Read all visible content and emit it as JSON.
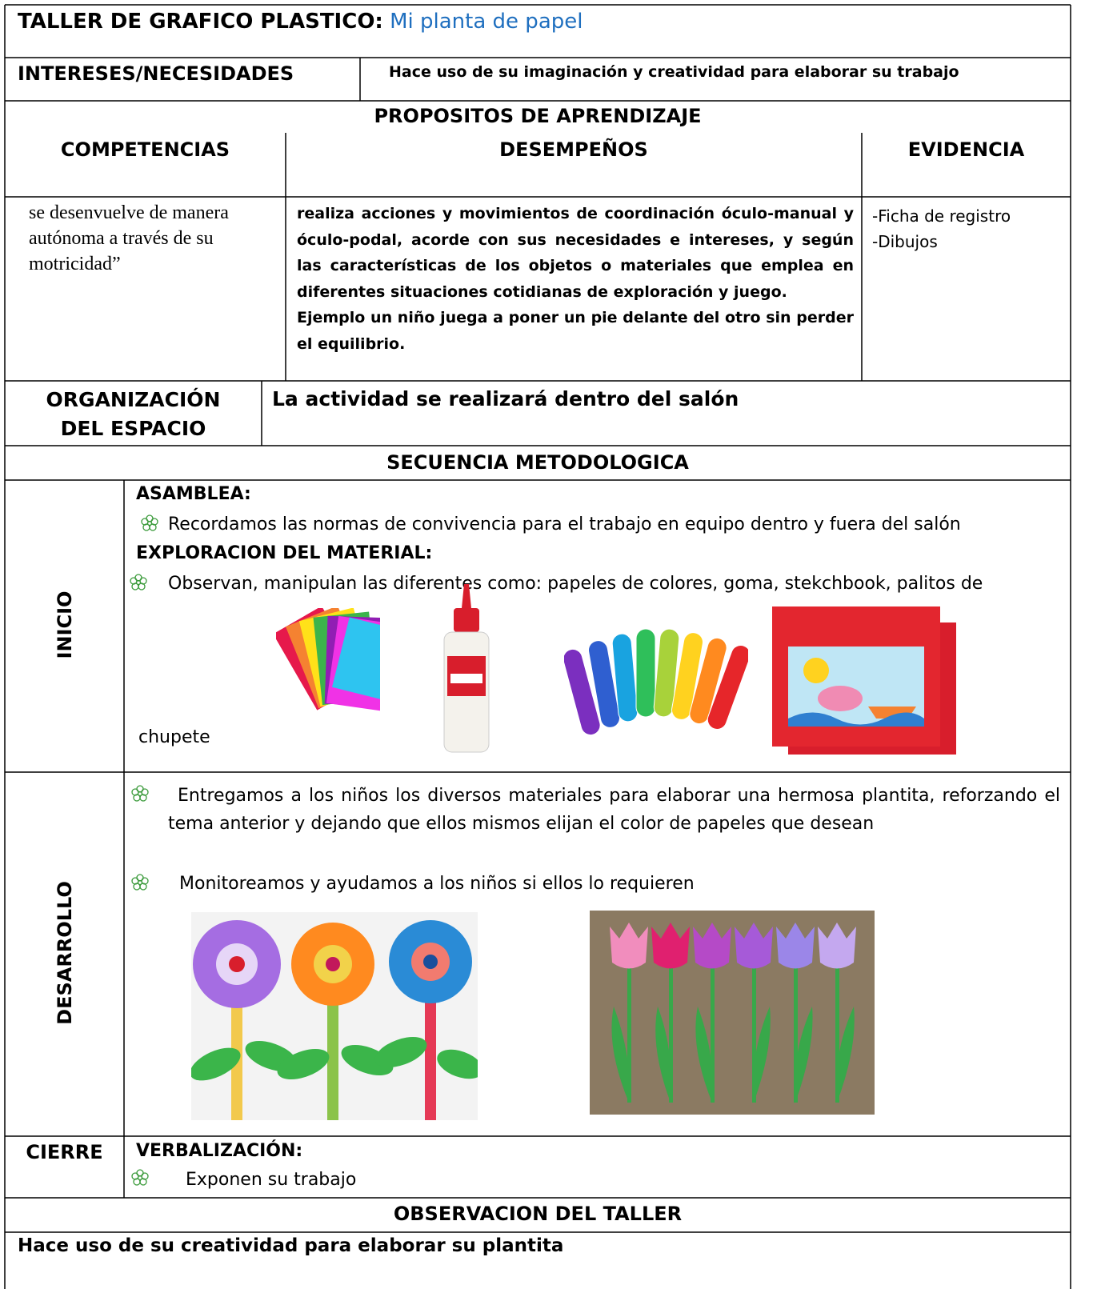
{
  "header": {
    "label": "TALLER DE GRAFICO PLASTICO:",
    "title": "Mi planta de papel"
  },
  "intereses": {
    "label": "INTERESES/NECESIDADES",
    "text": "Hace uso de su imaginación y creatividad para elaborar su trabajo"
  },
  "propositos": {
    "heading": "PROPOSITOS DE APRENDIZAJE",
    "columns": [
      "COMPETENCIAS",
      "DESEMPEÑOS",
      "EVIDENCIA"
    ],
    "competencia": "se desenvuelve de manera autónoma a través de su motricidad”",
    "desempenos": [
      "realiza acciones y movimientos de coordinación óculo-manual y óculo-podal, acorde con sus necesidades e intereses, y según las características de los objetos o materiales que emplea en diferentes situaciones cotidianas de exploración y juego.",
      "Ejemplo un niño juega a poner un pie delante del otro sin perder el equilibrio."
    ],
    "evidencias": [
      "-Ficha de registro",
      "-Dibujos"
    ]
  },
  "organizacion": {
    "label": "ORGANIZACIÓN DEL ESPACIO",
    "text": "La actividad se realizará dentro del salón"
  },
  "secuencia": {
    "heading": "SECUENCIA METODOLOGICA",
    "inicio": {
      "label": "INICIO",
      "asamblea": "ASAMBLEA:",
      "asamblea_item": "Recordamos las normas de convivencia para el trabajo en equipo dentro y fuera del salón",
      "exploracion": "EXPLORACION DEL MATERIAL:",
      "exploracion_item": "Observan, manipulan las diferentes como: papeles de colores, goma, stekchbook, palitos de",
      "exploracion_end": "chupete"
    },
    "desarrollo": {
      "label": "DESARROLLO",
      "items": [
        "Entregamos a los niños los diversos materiales para elaborar una hermosa plantita, reforzando el tema anterior y dejando que ellos mismos elijan el color de papeles que desean",
        "Monitoreamos y ayudamos a los niños si ellos lo requieren"
      ]
    },
    "cierre": {
      "label": "CIERRE",
      "heading": "VERBALIZACIÓN:",
      "item": "Exponen su trabajo"
    }
  },
  "observacion": {
    "heading": "OBSERVACION DEL TALLER",
    "text": "Hace uso de su creatividad para elaborar su plantita"
  }
}
